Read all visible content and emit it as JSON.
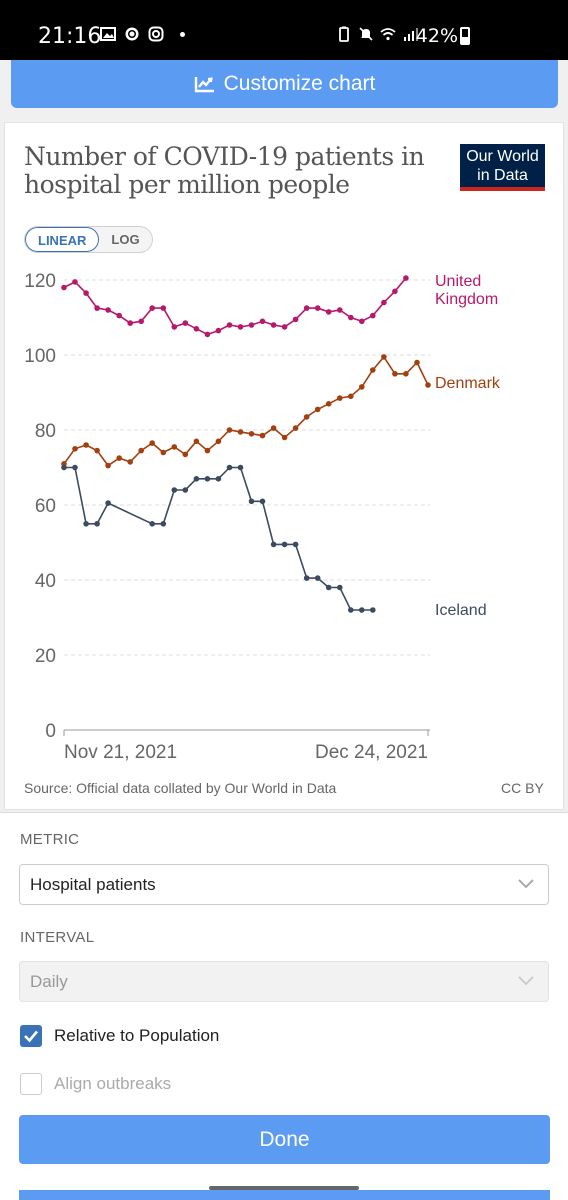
{
  "statusbar": {
    "time": "21:16",
    "battery": "42%",
    "battery_level": 0.42
  },
  "header": {
    "customize_label": "Customize chart"
  },
  "chart": {
    "title": "Number of COVID-19 patients in hospital per million people",
    "logo_line1": "Our World",
    "logo_line2": "in Data",
    "scale_linear": "LINEAR",
    "scale_log": "LOG",
    "source": "Source: Official data collated by Our World in Data",
    "license": "CC BY"
  },
  "chart_data": {
    "type": "line",
    "title": "Number of COVID-19 patients in hospital per million people",
    "xlabel": "",
    "ylabel": "",
    "x": [
      "Nov 21, 2021",
      "Nov 22, 2021",
      "Nov 23, 2021",
      "Nov 24, 2021",
      "Nov 25, 2021",
      "Nov 26, 2021",
      "Nov 27, 2021",
      "Nov 28, 2021",
      "Nov 29, 2021",
      "Nov 30, 2021",
      "Dec 1, 2021",
      "Dec 2, 2021",
      "Dec 3, 2021",
      "Dec 4, 2021",
      "Dec 5, 2021",
      "Dec 6, 2021",
      "Dec 7, 2021",
      "Dec 8, 2021",
      "Dec 9, 2021",
      "Dec 10, 2021",
      "Dec 11, 2021",
      "Dec 12, 2021",
      "Dec 13, 2021",
      "Dec 14, 2021",
      "Dec 15, 2021",
      "Dec 16, 2021",
      "Dec 17, 2021",
      "Dec 18, 2021",
      "Dec 19, 2021",
      "Dec 20, 2021",
      "Dec 21, 2021",
      "Dec 22, 2021",
      "Dec 23, 2021",
      "Dec 24, 2021"
    ],
    "x_tick_labels": [
      "Nov 21, 2021",
      "Dec 24, 2021"
    ],
    "y_ticks": [
      0,
      20,
      40,
      60,
      80,
      100,
      120
    ],
    "ylim": [
      0,
      125
    ],
    "grid": "horizontal dashed",
    "legend": "right of lines",
    "series": [
      {
        "name": "United Kingdom",
        "color": "#b6186b",
        "values": [
          118,
          119.5,
          116.5,
          112.5,
          112,
          110.5,
          108.5,
          109,
          112.5,
          112.5,
          107.5,
          108.5,
          107,
          105.5,
          106.5,
          108,
          107.5,
          108,
          109,
          108,
          107.5,
          109.5,
          112.5,
          112.5,
          111.5,
          112,
          110,
          109,
          110.5,
          114,
          117,
          120.5,
          null,
          null
        ]
      },
      {
        "name": "Denmark",
        "color": "#a2400f",
        "values": [
          71,
          75,
          76,
          74.5,
          70.5,
          72.5,
          71.5,
          74.5,
          76.5,
          74,
          75.5,
          73.5,
          77,
          74.5,
          77,
          80,
          79.5,
          79,
          78.5,
          80.5,
          78,
          80.5,
          83.5,
          85.5,
          87,
          88.5,
          89,
          91.5,
          96,
          99.5,
          95,
          95,
          98,
          92
        ]
      },
      {
        "name": "Iceland",
        "color": "#3c4b5f",
        "values": [
          70,
          70,
          55,
          55,
          60.5,
          null,
          null,
          null,
          55,
          55,
          64,
          64,
          67,
          67,
          67,
          70,
          70,
          61,
          61,
          49.5,
          49.5,
          49.5,
          40.5,
          40.5,
          38,
          38,
          32,
          32,
          32,
          null,
          null,
          null,
          null,
          null
        ]
      }
    ]
  },
  "form": {
    "metric_label": "METRIC",
    "metric_value": "Hospital patients",
    "interval_label": "INTERVAL",
    "interval_value": "Daily",
    "relative_label": "Relative to Population",
    "relative_checked": true,
    "align_label": "Align outbreaks",
    "align_checked": false,
    "done_label": "Done"
  },
  "colors": {
    "accent": "#5b9cf2",
    "checkbox": "#3a72b8",
    "logo_bg": "#002147",
    "logo_bar": "#ce261e"
  }
}
